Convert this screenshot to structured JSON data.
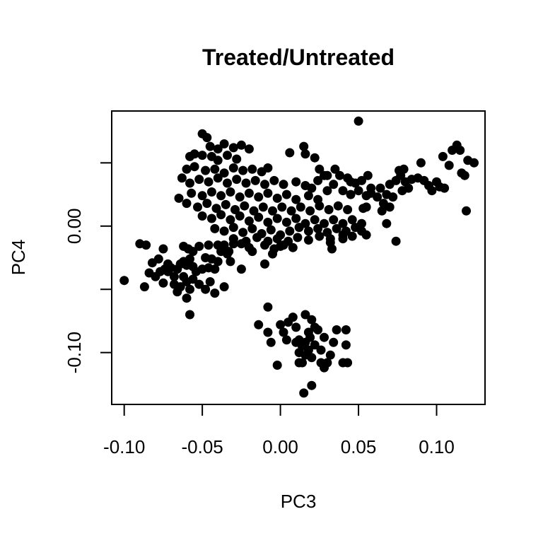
{
  "chart_data": {
    "type": "scatter",
    "title": "Treated/Untreated",
    "xlabel": "PC3",
    "ylabel": "PC4",
    "xlim": [
      -0.108,
      0.131
    ],
    "ylim": [
      -0.141,
      0.091
    ],
    "x_ticks": [
      -0.1,
      -0.05,
      0.0,
      0.05,
      0.1
    ],
    "x_tick_labels": [
      "-0.10",
      "-0.05",
      "0.00",
      "0.05",
      "0.10"
    ],
    "y_ticks": [
      -0.1,
      -0.05,
      0.0,
      0.05
    ],
    "y_tick_labels": [
      "-0.10",
      "",
      "0.00",
      ""
    ],
    "grid": false,
    "point_color": "#000000",
    "series": [
      {
        "points": [
          [
            0.05,
            0.083
          ],
          [
            -0.05,
            0.073
          ],
          [
            -0.047,
            0.07
          ],
          [
            -0.045,
            0.063
          ],
          [
            -0.04,
            0.061
          ],
          [
            -0.036,
            0.065
          ],
          [
            -0.03,
            0.062
          ],
          [
            -0.025,
            0.064
          ],
          [
            -0.02,
            0.061
          ],
          [
            -0.058,
            0.055
          ],
          [
            -0.055,
            0.057
          ],
          [
            -0.05,
            0.056
          ],
          [
            -0.044,
            0.055
          ],
          [
            -0.04,
            0.052
          ],
          [
            -0.034,
            0.056
          ],
          [
            -0.028,
            0.053
          ],
          [
            -0.06,
            0.045
          ],
          [
            -0.055,
            0.047
          ],
          [
            -0.048,
            0.044
          ],
          [
            -0.042,
            0.045
          ],
          [
            -0.036,
            0.042
          ],
          [
            -0.03,
            0.046
          ],
          [
            -0.024,
            0.044
          ],
          [
            -0.018,
            0.045
          ],
          [
            -0.012,
            0.043
          ],
          [
            -0.008,
            0.046
          ],
          [
            -0.063,
            0.038
          ],
          [
            -0.058,
            0.034
          ],
          [
            -0.052,
            0.037
          ],
          [
            -0.046,
            0.035
          ],
          [
            -0.04,
            0.038
          ],
          [
            -0.034,
            0.034
          ],
          [
            -0.028,
            0.037
          ],
          [
            -0.022,
            0.034
          ],
          [
            -0.016,
            0.036
          ],
          [
            -0.01,
            0.033
          ],
          [
            -0.004,
            0.036
          ],
          [
            0.002,
            0.033
          ],
          [
            -0.057,
            0.026
          ],
          [
            -0.05,
            0.024
          ],
          [
            -0.044,
            0.027
          ],
          [
            -0.038,
            0.024
          ],
          [
            -0.032,
            0.027
          ],
          [
            -0.026,
            0.023
          ],
          [
            -0.02,
            0.026
          ],
          [
            -0.014,
            0.023
          ],
          [
            -0.008,
            0.026
          ],
          [
            -0.002,
            0.022
          ],
          [
            0.004,
            0.025
          ],
          [
            0.01,
            0.021
          ],
          [
            0.018,
            0.024
          ],
          [
            0.024,
            0.021
          ],
          [
            -0.065,
            0.022
          ],
          [
            -0.06,
            0.018
          ],
          [
            -0.053,
            0.015
          ],
          [
            -0.047,
            0.018
          ],
          [
            -0.041,
            0.014
          ],
          [
            -0.035,
            0.017
          ],
          [
            -0.029,
            0.013
          ],
          [
            -0.023,
            0.016
          ],
          [
            -0.017,
            0.012
          ],
          [
            -0.011,
            0.015
          ],
          [
            -0.005,
            0.012
          ],
          [
            0.001,
            0.015
          ],
          [
            0.007,
            0.012
          ],
          [
            0.013,
            0.015
          ],
          [
            0.019,
            0.012
          ],
          [
            0.025,
            0.016
          ],
          [
            0.031,
            0.013
          ],
          [
            0.037,
            0.016
          ],
          [
            0.043,
            0.013
          ],
          [
            -0.05,
            0.008
          ],
          [
            -0.044,
            0.006
          ],
          [
            -0.038,
            0.009
          ],
          [
            -0.032,
            0.005
          ],
          [
            -0.026,
            0.008
          ],
          [
            -0.02,
            0.004
          ],
          [
            -0.014,
            0.007
          ],
          [
            -0.008,
            0.003
          ],
          [
            -0.002,
            0.006
          ],
          [
            0.004,
            0.003
          ],
          [
            0.01,
            0.006
          ],
          [
            0.016,
            0.002
          ],
          [
            0.022,
            0.005
          ],
          [
            0.028,
            0.002
          ],
          [
            0.034,
            0.005
          ],
          [
            0.04,
            0.002
          ],
          [
            0.046,
            0.005
          ],
          [
            0.052,
            0.002
          ],
          [
            -0.042,
            -0.002
          ],
          [
            -0.036,
            -0.004
          ],
          [
            -0.03,
            -0.001
          ],
          [
            -0.024,
            -0.005
          ],
          [
            -0.018,
            -0.002
          ],
          [
            -0.012,
            -0.006
          ],
          [
            -0.006,
            -0.003
          ],
          [
            0.0,
            -0.007
          ],
          [
            0.006,
            -0.004
          ],
          [
            0.012,
            -0.001
          ],
          [
            0.018,
            -0.004
          ],
          [
            0.024,
            -0.002
          ],
          [
            0.03,
            -0.005
          ],
          [
            0.036,
            -0.002
          ],
          [
            0.042,
            -0.004
          ],
          [
            0.048,
            -0.001
          ],
          [
            -0.03,
            -0.01
          ],
          [
            -0.022,
            -0.012
          ],
          [
            -0.015,
            -0.009
          ],
          [
            -0.008,
            -0.012
          ],
          [
            -0.002,
            -0.01
          ],
          [
            0.005,
            -0.012
          ],
          [
            0.011,
            -0.009
          ],
          [
            0.018,
            -0.011
          ],
          [
            0.025,
            -0.008
          ],
          [
            0.032,
            -0.01
          ],
          [
            0.04,
            -0.007
          ],
          [
            0.052,
            -0.004
          ],
          [
            -0.02,
            -0.017
          ],
          [
            -0.01,
            -0.015
          ],
          [
            -0.004,
            -0.018
          ],
          [
            0.002,
            -0.015
          ],
          [
            0.008,
            -0.017
          ],
          [
            -0.04,
            -0.015
          ],
          [
            -0.033,
            -0.02
          ],
          [
            -0.025,
            -0.014
          ],
          [
            -0.018,
            -0.02
          ],
          [
            0.032,
            -0.013
          ],
          [
            0.04,
            -0.01
          ],
          [
            0.046,
            -0.008
          ],
          [
            -0.005,
            -0.022
          ],
          [
            0.0,
            -0.016
          ],
          [
            -0.01,
            -0.03
          ],
          [
            0.033,
            -0.018
          ],
          [
            0.055,
            -0.007
          ],
          [
            -0.03,
            -0.01
          ],
          [
            -0.036,
            -0.015
          ],
          [
            0.006,
            0.058
          ],
          [
            0.015,
            0.063
          ],
          [
            0.016,
            0.057
          ],
          [
            0.022,
            0.054
          ],
          [
            0.025,
            0.045
          ],
          [
            0.028,
            0.04
          ],
          [
            0.03,
            0.04
          ],
          [
            0.035,
            0.045
          ],
          [
            0.038,
            0.04
          ],
          [
            0.043,
            0.038
          ],
          [
            0.045,
            0.035
          ],
          [
            0.048,
            0.034
          ],
          [
            0.01,
            0.035
          ],
          [
            0.016,
            0.032
          ],
          [
            0.02,
            0.03
          ],
          [
            0.024,
            0.036
          ],
          [
            0.03,
            0.028
          ],
          [
            0.034,
            0.033
          ],
          [
            0.04,
            0.028
          ],
          [
            0.045,
            0.025
          ],
          [
            0.05,
            0.028
          ],
          [
            0.055,
            0.024
          ],
          [
            0.058,
            0.03
          ],
          [
            0.056,
            0.04
          ],
          [
            0.052,
            0.036
          ],
          [
            0.055,
            0.015
          ],
          [
            0.058,
            0.026
          ],
          [
            0.062,
            0.023
          ],
          [
            0.064,
            0.03
          ],
          [
            0.066,
            0.018
          ],
          [
            0.068,
            0.025
          ],
          [
            0.07,
            0.015
          ],
          [
            0.072,
            0.023
          ],
          [
            0.065,
            0.012
          ],
          [
            0.07,
            0.033
          ],
          [
            0.074,
            0.036
          ],
          [
            0.077,
            0.04
          ],
          [
            0.078,
            0.028
          ],
          [
            0.08,
            0.035
          ],
          [
            0.082,
            0.03
          ],
          [
            0.079,
            0.045
          ],
          [
            0.076,
            0.044
          ],
          [
            0.084,
            0.037
          ],
          [
            0.088,
            0.038
          ],
          [
            0.092,
            0.036
          ],
          [
            0.09,
            0.05
          ],
          [
            0.095,
            0.032
          ],
          [
            0.097,
            0.028
          ],
          [
            0.1,
            0.035
          ],
          [
            0.102,
            0.031
          ],
          [
            0.105,
            0.03
          ],
          [
            0.104,
            0.055
          ],
          [
            0.108,
            0.048
          ],
          [
            0.11,
            0.06
          ],
          [
            0.113,
            0.064
          ],
          [
            0.115,
            0.06
          ],
          [
            0.116,
            0.042
          ],
          [
            0.118,
            0.04
          ],
          [
            0.12,
            0.052
          ],
          [
            0.124,
            0.05
          ],
          [
            0.119,
            0.012
          ],
          [
            0.068,
            0.002
          ],
          [
            0.074,
            -0.012
          ],
          [
            0.053,
            0.014
          ],
          [
            -0.09,
            -0.014
          ],
          [
            -0.086,
            -0.015
          ],
          [
            -0.082,
            -0.029
          ],
          [
            -0.078,
            -0.026
          ],
          [
            -0.075,
            -0.018
          ],
          [
            -0.074,
            -0.034
          ],
          [
            -0.072,
            -0.03
          ],
          [
            -0.084,
            -0.037
          ],
          [
            -0.08,
            -0.04
          ],
          [
            -0.077,
            -0.036
          ],
          [
            -0.075,
            -0.045
          ],
          [
            -0.072,
            -0.036
          ],
          [
            -0.07,
            -0.033
          ],
          [
            -0.068,
            -0.04
          ],
          [
            -0.066,
            -0.034
          ],
          [
            -0.064,
            -0.03
          ],
          [
            -0.062,
            -0.028
          ],
          [
            -0.06,
            -0.031
          ],
          [
            -0.058,
            -0.026
          ],
          [
            -0.056,
            -0.032
          ],
          [
            -0.068,
            -0.046
          ],
          [
            -0.066,
            -0.052
          ],
          [
            -0.064,
            -0.048
          ],
          [
            -0.062,
            -0.04
          ],
          [
            -0.06,
            -0.044
          ],
          [
            -0.058,
            -0.05
          ],
          [
            -0.056,
            -0.042
          ],
          [
            -0.062,
            -0.016
          ],
          [
            -0.059,
            -0.018
          ],
          [
            -0.056,
            -0.02
          ],
          [
            -0.052,
            -0.016
          ],
          [
            -0.048,
            -0.025
          ],
          [
            -0.044,
            -0.026
          ],
          [
            -0.046,
            -0.015
          ],
          [
            -0.054,
            -0.036
          ],
          [
            -0.05,
            -0.034
          ],
          [
            -0.046,
            -0.033
          ],
          [
            -0.042,
            -0.034
          ],
          [
            -0.04,
            -0.028
          ],
          [
            -0.038,
            -0.02
          ],
          [
            -0.034,
            -0.022
          ],
          [
            -0.032,
            -0.028
          ],
          [
            -0.052,
            -0.046
          ],
          [
            -0.048,
            -0.05
          ],
          [
            -0.045,
            -0.044
          ],
          [
            -0.042,
            -0.053
          ],
          [
            -0.036,
            -0.048
          ],
          [
            -0.06,
            -0.057
          ],
          [
            -0.058,
            -0.07
          ],
          [
            -0.1,
            -0.043
          ],
          [
            -0.087,
            -0.048
          ],
          [
            -0.025,
            -0.034
          ],
          [
            -0.03,
            -0.014
          ],
          [
            -0.008,
            -0.064
          ],
          [
            -0.014,
            -0.078
          ],
          [
            -0.008,
            -0.084
          ],
          [
            -0.006,
            -0.092
          ],
          [
            -0.002,
            -0.11
          ],
          [
            0.0,
            -0.078
          ],
          [
            0.002,
            -0.084
          ],
          [
            0.004,
            -0.09
          ],
          [
            0.005,
            -0.076
          ],
          [
            0.008,
            -0.072
          ],
          [
            0.01,
            -0.08
          ],
          [
            0.012,
            -0.09
          ],
          [
            0.014,
            -0.095
          ],
          [
            0.016,
            -0.07
          ],
          [
            0.018,
            -0.084
          ],
          [
            0.01,
            -0.092
          ],
          [
            0.012,
            -0.1
          ],
          [
            0.014,
            -0.108
          ],
          [
            0.016,
            -0.092
          ],
          [
            0.018,
            -0.098
          ],
          [
            0.02,
            -0.104
          ],
          [
            0.022,
            -0.094
          ],
          [
            0.024,
            -0.082
          ],
          [
            0.026,
            -0.098
          ],
          [
            0.028,
            -0.088
          ],
          [
            0.03,
            -0.108
          ],
          [
            0.032,
            -0.102
          ],
          [
            0.034,
            -0.092
          ],
          [
            0.02,
            -0.074
          ],
          [
            0.022,
            -0.08
          ],
          [
            0.019,
            -0.088
          ],
          [
            0.016,
            -0.102
          ],
          [
            0.012,
            -0.108
          ],
          [
            0.036,
            -0.082
          ],
          [
            0.04,
            -0.108
          ],
          [
            0.042,
            -0.082
          ],
          [
            0.043,
            -0.108
          ],
          [
            0.042,
            -0.094
          ],
          [
            0.02,
            -0.126
          ],
          [
            0.015,
            -0.132
          ],
          [
            0.028,
            -0.112
          ],
          [
            0.026,
            -0.108
          ]
        ]
      }
    ]
  }
}
